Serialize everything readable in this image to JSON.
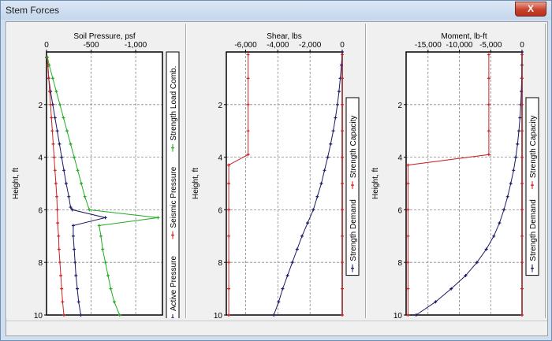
{
  "window": {
    "title": "Stem Forces",
    "close_label": "X"
  },
  "chart_data": [
    {
      "type": "line",
      "title": "Soil Pressure, psf",
      "ylabel": "Height, ft",
      "xlim": [
        0,
        -1300
      ],
      "ylim": [
        0,
        10
      ],
      "x_ticks": [
        0,
        -500,
        -1000
      ],
      "x_tick_labels": [
        "0",
        "-500",
        "-1,000"
      ],
      "y_ticks": [
        2,
        4,
        6,
        8,
        10
      ],
      "y_tick_labels": [
        "2",
        "4",
        "6",
        "8",
        "10"
      ],
      "grid": true,
      "legend_placement": "right, vertical",
      "series": [
        {
          "name": "Active Pressure",
          "color": "#1a1a66",
          "marker": "plus",
          "points": [
            [
              0,
              0.2
            ],
            [
              -15,
              0.5
            ],
            [
              -25,
              1
            ],
            [
              -45,
              1.5
            ],
            [
              -70,
              2
            ],
            [
              -95,
              2.5
            ],
            [
              -120,
              3
            ],
            [
              -145,
              3.5
            ],
            [
              -170,
              4
            ],
            [
              -195,
              4.5
            ],
            [
              -220,
              5
            ],
            [
              -250,
              5.5
            ],
            [
              -270,
              5.9
            ],
            [
              -290,
              6
            ],
            [
              -660,
              6.3
            ],
            [
              -300,
              6.6
            ],
            [
              -300,
              7
            ],
            [
              -310,
              7.5
            ],
            [
              -320,
              8
            ],
            [
              -330,
              8.5
            ],
            [
              -345,
              9
            ],
            [
              -360,
              9.5
            ],
            [
              -385,
              10
            ]
          ]
        },
        {
          "name": "Seismic Pressure",
          "color": "#cc2222",
          "marker": "plus",
          "points": [
            [
              -5,
              0.2
            ],
            [
              -15,
              0.5
            ],
            [
              -25,
              1
            ],
            [
              -35,
              1.5
            ],
            [
              -45,
              2
            ],
            [
              -55,
              2.5
            ],
            [
              -65,
              3
            ],
            [
              -75,
              3.5
            ],
            [
              -85,
              4
            ],
            [
              -95,
              4.5
            ],
            [
              -105,
              5
            ],
            [
              -115,
              5.5
            ],
            [
              -120,
              6
            ],
            [
              -125,
              6.5
            ],
            [
              -135,
              7
            ],
            [
              -140,
              7.5
            ],
            [
              -150,
              8
            ],
            [
              -160,
              8.5
            ],
            [
              -170,
              9
            ],
            [
              -180,
              9.5
            ],
            [
              -195,
              10
            ]
          ]
        },
        {
          "name": "Strength Load Comb.",
          "color": "#22aa22",
          "marker": "plus",
          "points": [
            [
              -10,
              0.2
            ],
            [
              -30,
              0.5
            ],
            [
              -70,
              1
            ],
            [
              -110,
              1.5
            ],
            [
              -150,
              2
            ],
            [
              -190,
              2.5
            ],
            [
              -230,
              3
            ],
            [
              -270,
              3.5
            ],
            [
              -310,
              4
            ],
            [
              -350,
              4.5
            ],
            [
              -390,
              5
            ],
            [
              -430,
              5.5
            ],
            [
              -480,
              6
            ],
            [
              -1250,
              6.3
            ],
            [
              -590,
              6.6
            ],
            [
              -610,
              7
            ],
            [
              -630,
              7.5
            ],
            [
              -660,
              8
            ],
            [
              -690,
              8.5
            ],
            [
              -720,
              9
            ],
            [
              -760,
              9.5
            ],
            [
              -820,
              10
            ]
          ]
        }
      ]
    },
    {
      "type": "line",
      "title": "Shear, lbs",
      "ylabel": "Height, ft",
      "xlim": [
        -7200,
        0
      ],
      "ylim": [
        0,
        10
      ],
      "x_ticks": [
        -6000,
        -4000,
        -2000,
        0
      ],
      "x_tick_labels": [
        "-6,000",
        "-4,000",
        "-2,000",
        "0"
      ],
      "y_ticks": [
        2,
        4,
        6,
        8,
        10
      ],
      "y_tick_labels": [
        "2",
        "4",
        "6",
        "8",
        "10"
      ],
      "grid": true,
      "legend_placement": "right, vertical",
      "series": [
        {
          "name": "Strength Demand",
          "color": "#1a1a66",
          "marker": "plus",
          "points": [
            [
              0,
              0
            ],
            [
              -50,
              0.5
            ],
            [
              -120,
              1
            ],
            [
              -200,
              1.5
            ],
            [
              -300,
              2
            ],
            [
              -420,
              2.5
            ],
            [
              -560,
              3
            ],
            [
              -720,
              3.5
            ],
            [
              -900,
              4
            ],
            [
              -1100,
              4.5
            ],
            [
              -1300,
              5
            ],
            [
              -1550,
              5.5
            ],
            [
              -1800,
              6
            ],
            [
              -2150,
              6.5
            ],
            [
              -2500,
              7
            ],
            [
              -2800,
              7.5
            ],
            [
              -3100,
              8
            ],
            [
              -3400,
              8.5
            ],
            [
              -3700,
              9
            ],
            [
              -3950,
              9.5
            ],
            [
              -4250,
              10
            ]
          ]
        },
        {
          "name": "Strength Capacity",
          "color": "#cc2222",
          "marker": "plus",
          "points": [
            [
              -5850,
              0.1
            ],
            [
              -5850,
              1
            ],
            [
              -5850,
              2
            ],
            [
              -5850,
              3
            ],
            [
              -5850,
              3.9
            ],
            [
              -7050,
              4.3
            ],
            [
              -7050,
              5
            ],
            [
              -7050,
              6
            ],
            [
              -7050,
              7
            ],
            [
              -7050,
              8
            ],
            [
              -7050,
              9
            ],
            [
              -7050,
              10
            ]
          ]
        },
        {
          "name": "",
          "color": "#cc2222",
          "marker": "plus",
          "points": [
            [
              0,
              0.1
            ],
            [
              0,
              1
            ],
            [
              0,
              2
            ],
            [
              0,
              3
            ],
            [
              0,
              4
            ],
            [
              0,
              5
            ],
            [
              0,
              6
            ],
            [
              0,
              7
            ],
            [
              0,
              8
            ],
            [
              0,
              9
            ],
            [
              0,
              10
            ]
          ]
        }
      ]
    },
    {
      "type": "line",
      "title": "Moment, lb-ft",
      "ylabel": "Height, ft",
      "xlim": [
        -18500,
        0
      ],
      "ylim": [
        0,
        10
      ],
      "x_ticks": [
        -15000,
        -10000,
        -5000,
        0
      ],
      "x_tick_labels": [
        "-15,000",
        "-10,000",
        "-5,000",
        "0"
      ],
      "y_ticks": [
        2,
        4,
        6,
        8,
        10
      ],
      "y_tick_labels": [
        "2",
        "4",
        "6",
        "8",
        "10"
      ],
      "grid": true,
      "legend_placement": "right, vertical",
      "series": [
        {
          "name": "Strength Demand",
          "color": "#1a1a66",
          "marker": "plus",
          "points": [
            [
              0,
              0
            ],
            [
              -20,
              0.5
            ],
            [
              -50,
              1
            ],
            [
              -110,
              1.5
            ],
            [
              -200,
              2
            ],
            [
              -330,
              2.5
            ],
            [
              -500,
              3
            ],
            [
              -720,
              3.5
            ],
            [
              -1000,
              4
            ],
            [
              -1350,
              4.5
            ],
            [
              -1800,
              5
            ],
            [
              -2300,
              5.5
            ],
            [
              -2900,
              6
            ],
            [
              -3600,
              6.5
            ],
            [
              -4500,
              7
            ],
            [
              -5700,
              7.5
            ],
            [
              -7200,
              8
            ],
            [
              -9000,
              8.5
            ],
            [
              -11300,
              9
            ],
            [
              -13800,
              9.5
            ],
            [
              -16900,
              10
            ]
          ]
        },
        {
          "name": "Strength Capacity",
          "color": "#cc2222",
          "marker": "plus",
          "points": [
            [
              -5300,
              0.1
            ],
            [
              -5300,
              1
            ],
            [
              -5300,
              2
            ],
            [
              -5300,
              3
            ],
            [
              -5300,
              3.9
            ],
            [
              -18200,
              4.3
            ],
            [
              -18200,
              5
            ],
            [
              -18200,
              6
            ],
            [
              -18200,
              7
            ],
            [
              -18200,
              8
            ],
            [
              -18200,
              9
            ],
            [
              -18200,
              10
            ]
          ]
        },
        {
          "name": "",
          "color": "#cc2222",
          "marker": "plus",
          "points": [
            [
              0,
              0.1
            ],
            [
              0,
              1
            ],
            [
              0,
              2
            ],
            [
              0,
              3
            ],
            [
              0,
              4
            ],
            [
              0,
              5
            ],
            [
              0,
              6
            ],
            [
              0,
              7
            ],
            [
              0,
              8
            ],
            [
              0,
              9
            ],
            [
              0,
              10
            ]
          ]
        }
      ]
    }
  ]
}
